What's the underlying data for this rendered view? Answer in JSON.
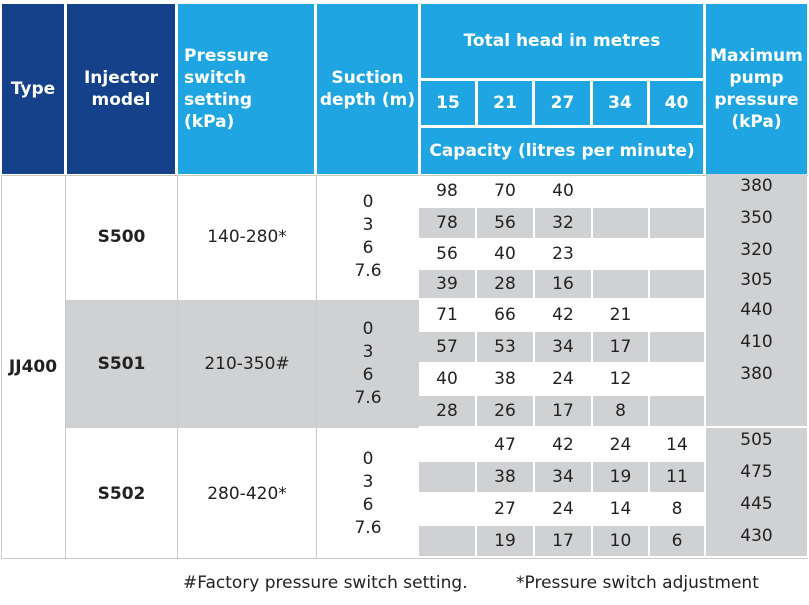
{
  "header": {
    "type": "Type",
    "injector_model": [
      "Injector",
      "model"
    ],
    "pressure_switch": [
      "Pressure",
      "switch setting",
      "(kPa)"
    ],
    "suction_depth": [
      "Suction",
      "depth (m)"
    ],
    "total_head": "Total head in metres",
    "heads": [
      "15",
      "21",
      "27",
      "34",
      "40"
    ],
    "capacity": "Capacity (litres per minute)",
    "max_pressure": [
      "Maximum",
      "pump",
      "pressure",
      "(kPa)"
    ]
  },
  "type_value": "JJ400",
  "groups": [
    {
      "model": "S500",
      "setting": "140-280*",
      "depths": [
        "0",
        "3",
        "6",
        "7.6"
      ],
      "rows": [
        [
          "98",
          "70",
          "40",
          "",
          ""
        ],
        [
          "78",
          "56",
          "32",
          "",
          ""
        ],
        [
          "56",
          "40",
          "23",
          "",
          ""
        ],
        [
          "39",
          "28",
          "16",
          "",
          ""
        ]
      ],
      "pressures": [
        "380",
        "350",
        "320",
        "305"
      ]
    },
    {
      "model": "S501",
      "setting": "210-350#",
      "depths": [
        "0",
        "3",
        "6",
        "7.6"
      ],
      "rows": [
        [
          "71",
          "66",
          "42",
          "21",
          ""
        ],
        [
          "57",
          "53",
          "34",
          "17",
          ""
        ],
        [
          "40",
          "38",
          "24",
          "12",
          ""
        ],
        [
          "28",
          "26",
          "17",
          "8",
          ""
        ]
      ],
      "pressures": [
        "440",
        "410",
        "380",
        ""
      ]
    },
    {
      "model": "S502",
      "setting": "280-420*",
      "depths": [
        "0",
        "3",
        "6",
        "7.6"
      ],
      "rows": [
        [
          "",
          "47",
          "42",
          "24",
          "14"
        ],
        [
          "",
          "38",
          "34",
          "19",
          "11"
        ],
        [
          "",
          "27",
          "24",
          "14",
          "8"
        ],
        [
          "",
          "19",
          "17",
          "10",
          "6"
        ]
      ],
      "pressures": [
        "505",
        "475",
        "445",
        "430"
      ]
    }
  ],
  "footnotes": {
    "factory": "#Factory pressure switch setting.",
    "adjustment": "*Pressure switch adjustment"
  }
}
